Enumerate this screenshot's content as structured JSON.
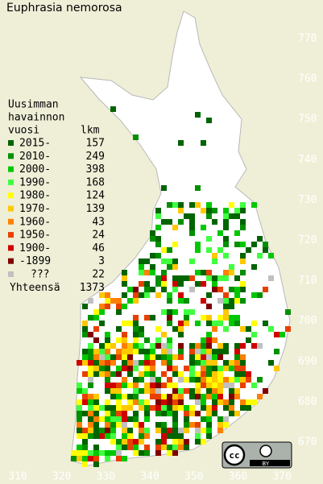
{
  "title": "Euphrasia nemorosa",
  "legend": {
    "heading": [
      "Uusimman",
      "havainnon"
    ],
    "col_headers": [
      "vuosi",
      "lkm"
    ],
    "rows": [
      {
        "label": "2015-",
        "count": 157,
        "color": "#006400"
      },
      {
        "label": "2010-",
        "count": 249,
        "color": "#009000"
      },
      {
        "label": "2000-",
        "count": 398,
        "color": "#00c800"
      },
      {
        "label": "1990-",
        "count": 168,
        "color": "#40ff40"
      },
      {
        "label": "1980-",
        "count": 124,
        "color": "#ffff00"
      },
      {
        "label": "1970-",
        "count": 139,
        "color": "#ffc800"
      },
      {
        "label": "1960-",
        "count": 43,
        "color": "#ff8000"
      },
      {
        "label": "1950-",
        "count": 24,
        "color": "#e84000"
      },
      {
        "label": "1900-",
        "count": 46,
        "color": "#d00000"
      },
      {
        "label": "-1899",
        "count": 3,
        "color": "#800000"
      },
      {
        "label": "???",
        "count": 22,
        "color": "#c0c0c0"
      }
    ],
    "total_label": "Yhteensä",
    "total": 1373
  },
  "y_axis_labels": [
    770,
    760,
    750,
    740,
    730,
    720,
    710,
    700,
    690,
    680,
    670
  ],
  "x_axis_labels": [
    310,
    320,
    330,
    340,
    350,
    360,
    370
  ],
  "license": {
    "icon": "cc",
    "label": "BY"
  }
}
